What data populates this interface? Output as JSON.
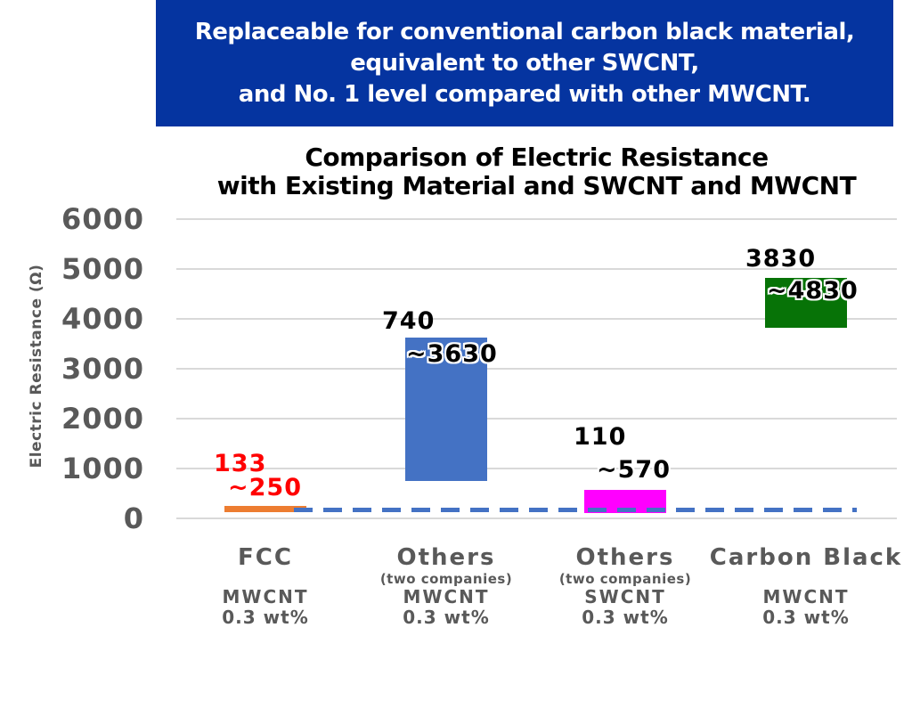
{
  "banner": {
    "bg_color": "#0534a0",
    "text_color": "#ffffff",
    "lines": [
      "Replaceable for conventional carbon black material,",
      "equivalent to other SWCNT,",
      "and No. 1 level compared with other MWCNT."
    ]
  },
  "chart_data": {
    "type": "bar",
    "title_lines": [
      "Comparison of Electric Resistance",
      "with Existing Material and SWCNT and MWCNT"
    ],
    "ylabel": "Electric Resistance (Ω)",
    "ylim": [
      0,
      6000
    ],
    "yticks": [
      0,
      1000,
      2000,
      3000,
      4000,
      5000,
      6000
    ],
    "grid": true,
    "axis_text_color": "#595959",
    "gridline_color": "#d9d9d9",
    "bars": [
      {
        "name": "FCC",
        "note": "",
        "material": "MWCNT",
        "loading": "0.3 wt%",
        "low": 133,
        "high": 250,
        "label_low": "133",
        "label_high": "~250",
        "color": "#ED7D31",
        "label_color": "#FF0000"
      },
      {
        "name": "Others",
        "note": "(two companies)",
        "material": "MWCNT",
        "loading": "0.3 wt%",
        "low": 740,
        "high": 3630,
        "label_low": "740",
        "label_high": "~3630",
        "color": "#4472C4",
        "label_color": "#000000"
      },
      {
        "name": "Others",
        "note": "(two companies)",
        "material": "SWCNT",
        "loading": "0.3 wt%",
        "low": 110,
        "high": 570,
        "label_low": "110",
        "label_high": "~570",
        "color": "#FF00FF",
        "label_color": "#000000"
      },
      {
        "name": "Carbon Black",
        "note": "",
        "material": "MWCNT",
        "loading": "0.3 wt%",
        "low": 3830,
        "high": 4830,
        "label_low": "3830",
        "label_high": "~4830",
        "color": "#077307",
        "label_color": "#000000"
      }
    ],
    "reference_line": {
      "value": 180,
      "color": "#4472C4",
      "style": "dashed"
    }
  }
}
